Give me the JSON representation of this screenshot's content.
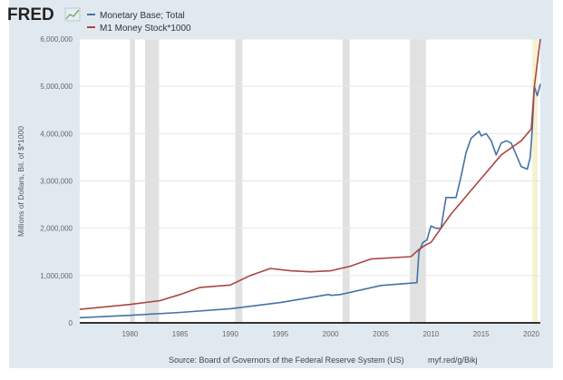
{
  "logo": "FRED",
  "chart_data": {
    "type": "line",
    "title": "",
    "ylabel": "Millions of Dollars, Bil. of $*1000",
    "xlim": [
      1975,
      2020.9
    ],
    "ylim": [
      0,
      6000000
    ],
    "x_ticks": [
      1980,
      1985,
      1990,
      1995,
      2000,
      2005,
      2010,
      2015,
      2020
    ],
    "x_tick_labels": [
      "1980",
      "1985",
      "1990",
      "1995",
      "2000",
      "2005",
      "2010",
      "2015",
      "2020"
    ],
    "y_ticks": [
      0,
      1000000,
      2000000,
      3000000,
      4000000,
      5000000,
      6000000
    ],
    "y_tick_labels": [
      "0",
      "1,000,000",
      "2,000,000",
      "3,000,000",
      "4,000,000",
      "5,000,000",
      "6,000,000"
    ],
    "grid": "horizontal",
    "legend_position": "top-left",
    "recessions": [
      [
        1980.0,
        1980.5
      ],
      [
        1981.5,
        1982.9
      ],
      [
        1990.5,
        1991.2
      ],
      [
        2001.2,
        2001.9
      ],
      [
        2007.9,
        2009.5
      ],
      [
        2020.1,
        2020.4
      ]
    ],
    "recession_color": "#e1e1e1",
    "highlight_color": "#f5f2d0",
    "series": [
      {
        "name": "Monetary Base; Total",
        "color": "#4572a7",
        "x": [
          1975,
          1980,
          1985,
          1990,
          1995,
          1999.8,
          2000.1,
          2001,
          2005,
          2008.6,
          2008.8,
          2009.2,
          2009.6,
          2010,
          2010.5,
          2011,
          2011.5,
          2012,
          2012.5,
          2013,
          2013.5,
          2014,
          2014.8,
          2015,
          2015.5,
          2016,
          2016.5,
          2017,
          2017.5,
          2018,
          2018.5,
          2019,
          2019.6,
          2019.9,
          2020.1,
          2020.3,
          2020.6,
          2020.9
        ],
        "y": [
          110000,
          160000,
          220000,
          300000,
          430000,
          600000,
          580000,
          600000,
          790000,
          850000,
          1500000,
          1700000,
          1750000,
          2050000,
          2000000,
          2000000,
          2650000,
          2650000,
          2650000,
          3100000,
          3600000,
          3900000,
          4050000,
          3950000,
          4000000,
          3850000,
          3550000,
          3800000,
          3850000,
          3800000,
          3550000,
          3300000,
          3250000,
          3500000,
          4100000,
          5000000,
          4800000,
          5050000
        ]
      },
      {
        "name": "M1 Money Stock*1000",
        "color": "#aa4643",
        "x": [
          1975,
          1980,
          1983,
          1985,
          1987,
          1990,
          1992,
          1994,
          1996,
          1998,
          2000,
          2002,
          2004,
          2008,
          2008.8,
          2009.5,
          2010,
          2011,
          2012,
          2013,
          2014,
          2015,
          2016,
          2017,
          2018,
          2019,
          2020,
          2020.3,
          2020.9
        ],
        "y": [
          285000,
          390000,
          470000,
          600000,
          750000,
          800000,
          1000000,
          1150000,
          1100000,
          1080000,
          1100000,
          1200000,
          1350000,
          1400000,
          1550000,
          1650000,
          1700000,
          2000000,
          2300000,
          2550000,
          2800000,
          3050000,
          3300000,
          3550000,
          3700000,
          3850000,
          4100000,
          5000000,
          6000000
        ]
      }
    ]
  },
  "source": "Source: Board of Governors of the Federal Reserve System (US)",
  "link": "myf.red/g/Bikj"
}
